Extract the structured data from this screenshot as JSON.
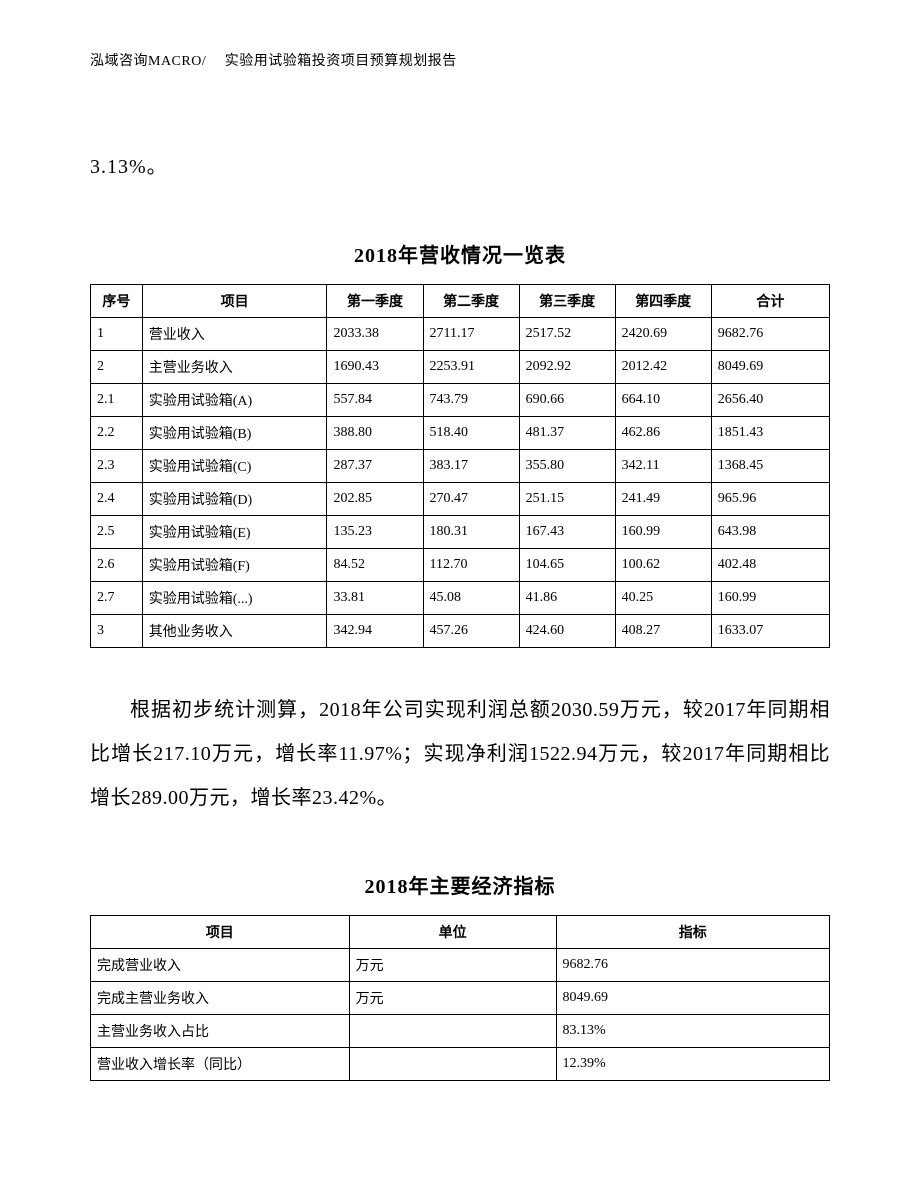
{
  "header": "泓域咨询MACRO/　 实验用试验箱投资项目预算规划报告",
  "fragment_top": "3.13%。",
  "table1": {
    "title": "2018年营收情况一览表",
    "columns": [
      "序号",
      "项目",
      "第一季度",
      "第二季度",
      "第三季度",
      "第四季度",
      "合计"
    ],
    "rows": [
      [
        "1",
        "营业收入",
        "2033.38",
        "2711.17",
        "2517.52",
        "2420.69",
        "9682.76"
      ],
      [
        "2",
        "主营业务收入",
        "1690.43",
        "2253.91",
        "2092.92",
        "2012.42",
        "8049.69"
      ],
      [
        "2.1",
        "实验用试验箱(A)",
        "557.84",
        "743.79",
        "690.66",
        "664.10",
        "2656.40"
      ],
      [
        "2.2",
        "实验用试验箱(B)",
        "388.80",
        "518.40",
        "481.37",
        "462.86",
        "1851.43"
      ],
      [
        "2.3",
        "实验用试验箱(C)",
        "287.37",
        "383.17",
        "355.80",
        "342.11",
        "1368.45"
      ],
      [
        "2.4",
        "实验用试验箱(D)",
        "202.85",
        "270.47",
        "251.15",
        "241.49",
        "965.96"
      ],
      [
        "2.5",
        "实验用试验箱(E)",
        "135.23",
        "180.31",
        "167.43",
        "160.99",
        "643.98"
      ],
      [
        "2.6",
        "实验用试验箱(F)",
        "84.52",
        "112.70",
        "104.65",
        "100.62",
        "402.48"
      ],
      [
        "2.7",
        "实验用试验箱(...)",
        "33.81",
        "45.08",
        "41.86",
        "40.25",
        "160.99"
      ],
      [
        "3",
        "其他业务收入",
        "342.94",
        "457.26",
        "424.60",
        "408.27",
        "1633.07"
      ]
    ]
  },
  "body_paragraph": "根据初步统计测算，2018年公司实现利润总额2030.59万元，较2017年同期相比增长217.10万元，增长率11.97%；实现净利润1522.94万元，较2017年同期相比增长289.00万元，增长率23.42%。",
  "table2": {
    "title": "2018年主要经济指标",
    "columns": [
      "项目",
      "单位",
      "指标"
    ],
    "rows": [
      [
        "完成营业收入",
        "万元",
        "9682.76"
      ],
      [
        "完成主营业务收入",
        "万元",
        "8049.69"
      ],
      [
        "主营业务收入占比",
        "",
        "83.13%"
      ],
      [
        "营业收入增长率（同比）",
        "",
        "12.39%"
      ]
    ]
  }
}
